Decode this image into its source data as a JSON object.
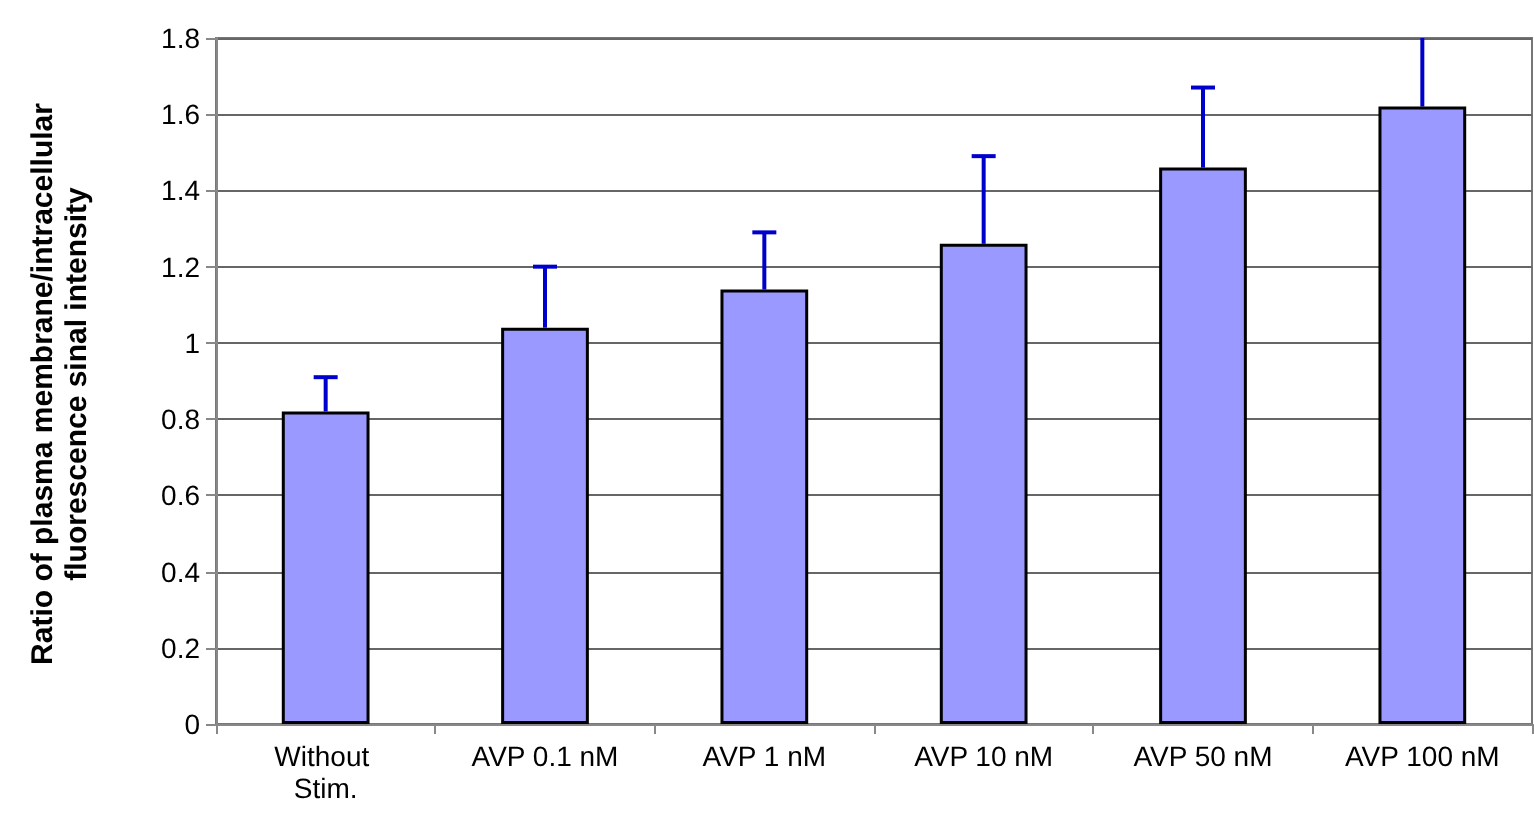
{
  "chart_data": {
    "type": "bar",
    "ylabel": "Ratio of plasma membrane/intracellular fluorescence sinal intensity",
    "categories": [
      "Without Stim.",
      "AVP 0.1 nM",
      "AVP 1 nM",
      "AVP 10 nM",
      "AVP 50 nM",
      "AVP 100 nM"
    ],
    "series": [
      {
        "color": "#9999ff",
        "values": [
          0.82,
          1.04,
          1.14,
          1.26,
          1.46,
          1.62
        ],
        "errors": [
          [
            0.82,
            0.91
          ],
          [
            1.04,
            1.2
          ],
          [
            1.14,
            1.29
          ],
          [
            1.26,
            1.49
          ],
          [
            1.46,
            1.67
          ],
          [
            1.62,
            1.8
          ]
        ]
      }
    ],
    "ylim": [
      0,
      1.8
    ],
    "yticks": [
      0,
      0.2,
      0.4,
      0.6,
      0.8,
      1,
      1.2,
      1.4,
      1.6,
      1.8
    ],
    "grid": "y"
  }
}
